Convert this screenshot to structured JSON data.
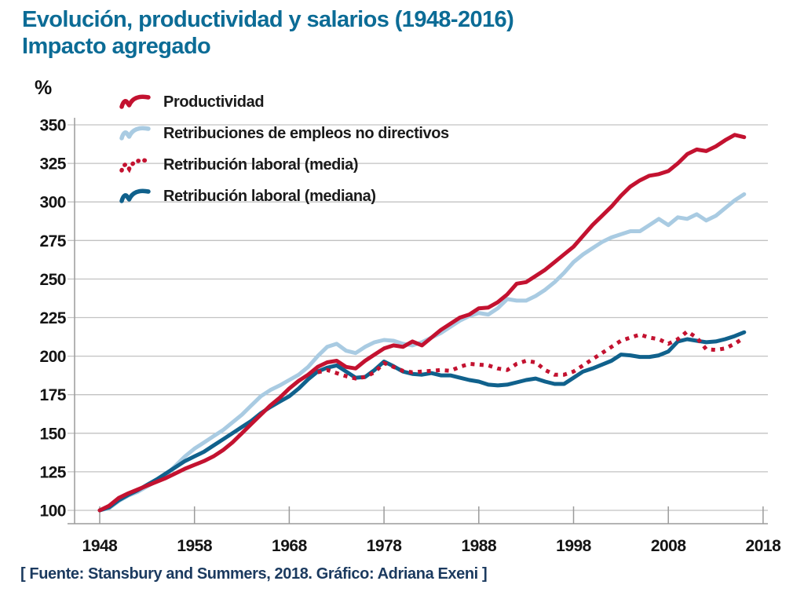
{
  "header": {
    "title_line1": "Evolución, productividad y salarios (1948-2016)",
    "title_line2": "Impacto agregado"
  },
  "axis": {
    "unit_label": "%",
    "y_ticks": [
      350,
      325,
      300,
      275,
      250,
      225,
      200,
      175,
      150,
      125,
      100
    ],
    "x_ticks": [
      1948,
      1958,
      1968,
      1978,
      1988,
      1998,
      2008,
      2018
    ]
  },
  "legend": [
    {
      "label": "Productividad",
      "style": "solid",
      "color": "#c31230"
    },
    {
      "label": "Retribuciones de empleos no directivos",
      "style": "solid",
      "color": "#a9cbe2"
    },
    {
      "label": "Retribución laboral (media)",
      "style": "dotted",
      "color": "#c31230"
    },
    {
      "label": "Retribución laboral (mediana)",
      "style": "solid",
      "color": "#10618c"
    }
  ],
  "footer": {
    "source": "[ Fuente: Stansbury and Summers, 2018. Gráfico: Adriana Exeni ]"
  },
  "colors": {
    "title": "#0c6c96",
    "grid": "#c2c2c2",
    "axis": "#9b9b9b",
    "tick_text": "#141414",
    "productivity_red": "#c31230",
    "nonsupervisory_blue": "#a9cbe2",
    "median_blue": "#10618c"
  },
  "chart_data": {
    "type": "line",
    "title": "Evolución, productividad y salarios (1948-2016) — Impacto agregado",
    "xlabel": "",
    "ylabel": "%",
    "ylim": [
      100,
      350
    ],
    "x_range": [
      1948,
      2018
    ],
    "grid": "horizontal",
    "legend_position": "top-left",
    "index_base": "1948 = 100",
    "series": [
      {
        "id": "productivity",
        "name": "Productividad",
        "style": "solid",
        "color": "#c31230",
        "start_year": 1948,
        "values": [
          100,
          103,
          108,
          111,
          113.5,
          116,
          118.5,
          121,
          124,
          127,
          129.5,
          132,
          135,
          139,
          144,
          150,
          156,
          162,
          168,
          173,
          179,
          184,
          188,
          193,
          196,
          197,
          193,
          192,
          197,
          201,
          205,
          207,
          206,
          209.5,
          207,
          212,
          217,
          221,
          225,
          227,
          231,
          231.5,
          235,
          240,
          247,
          248,
          252,
          256,
          261,
          266,
          271,
          278,
          285,
          291,
          297,
          304,
          310,
          314,
          317,
          318,
          320,
          325,
          331,
          334,
          333,
          336,
          340,
          343.5,
          342
        ]
      },
      {
        "id": "nonsupervisory",
        "name": "Retribuciones de empleos no directivos",
        "style": "solid",
        "color": "#a9cbe2",
        "start_year": 1948,
        "values": [
          100,
          101.5,
          106,
          109.5,
          112,
          115.5,
          119,
          123,
          129,
          135,
          140,
          144,
          148,
          152,
          157,
          162,
          168,
          174,
          178,
          181,
          184.5,
          188,
          193,
          200,
          206,
          208,
          203.5,
          202,
          206,
          209,
          210.5,
          210,
          208,
          207,
          209,
          212,
          215,
          219,
          223,
          226,
          228,
          227,
          231,
          237,
          236,
          236,
          239,
          243,
          248,
          254,
          261,
          266,
          270,
          274,
          277,
          279,
          281,
          281,
          285,
          289,
          285,
          290,
          289,
          292,
          288,
          291,
          296,
          301,
          305
        ]
      },
      {
        "id": "mean-compensation",
        "name": "Retribución laboral (media)",
        "style": "dotted",
        "color": "#c31230",
        "start_year": 1971,
        "values": [
          189.5,
          191,
          189,
          187,
          185.5,
          186.5,
          189.5,
          195.5,
          193,
          190.5,
          189.5,
          190,
          190.5,
          191,
          190.5,
          193,
          195,
          194.5,
          194,
          192,
          191,
          195,
          197,
          196,
          191,
          188,
          188,
          190,
          194,
          198,
          202,
          206,
          210,
          212,
          214,
          212,
          211,
          208,
          211,
          216,
          212,
          204.5,
          204,
          205,
          208,
          212
        ]
      },
      {
        "id": "median-compensation",
        "name": "Retribución laboral (mediana)",
        "style": "solid",
        "color": "#10618c",
        "start_year": 1948,
        "values": [
          100,
          102,
          106.5,
          110,
          113,
          116.5,
          120,
          124,
          128,
          132,
          135,
          138,
          142,
          146,
          150,
          154,
          158,
          163,
          167,
          170.5,
          174,
          179,
          185,
          190,
          192.5,
          194,
          190,
          186,
          186.5,
          191,
          196.5,
          193.5,
          190,
          188.5,
          188,
          189,
          187.5,
          187.5,
          186,
          184.5,
          183.5,
          181.5,
          181,
          181.5,
          183,
          184.5,
          185.5,
          183.5,
          182,
          182,
          186,
          190,
          192,
          194.5,
          197,
          201,
          200.5,
          199.5,
          199.5,
          200.5,
          203,
          209.5,
          211,
          210,
          209,
          209.5,
          211,
          213,
          215.5
        ]
      }
    ]
  }
}
